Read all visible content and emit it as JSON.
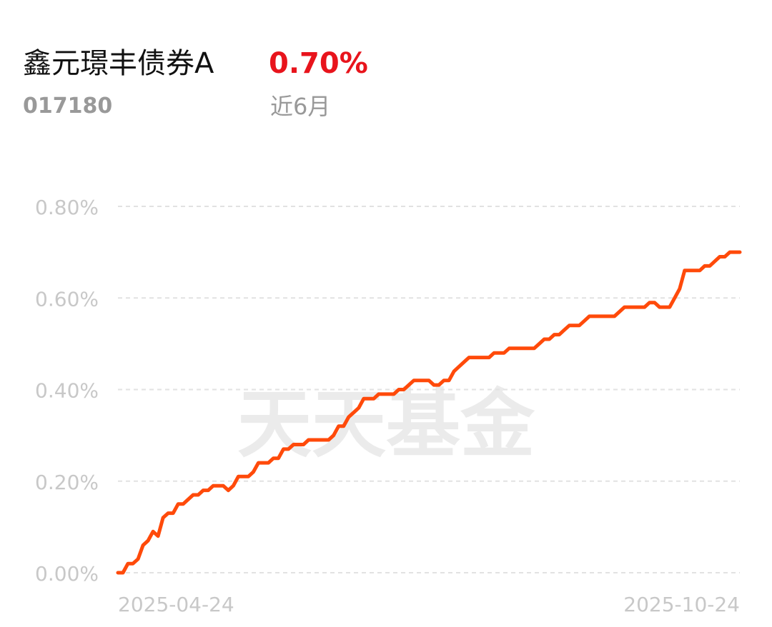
{
  "header": {
    "fund_name": "鑫元璟丰债券A",
    "return": "0.70%",
    "code": "017180",
    "period": "近6月"
  },
  "chart_data": {
    "type": "line",
    "watermark": "天天基金",
    "categories": [
      "2025-04-24",
      null,
      null,
      null,
      null,
      null,
      null,
      null,
      null,
      null,
      null,
      null,
      null,
      null,
      null,
      null,
      null,
      null,
      null,
      null,
      null,
      null,
      null,
      null,
      null,
      null,
      null,
      null,
      null,
      null,
      null,
      null,
      null,
      null,
      null,
      null,
      null,
      null,
      null,
      null,
      null,
      null,
      null,
      null,
      null,
      null,
      null,
      null,
      null,
      null,
      null,
      null,
      null,
      null,
      null,
      null,
      null,
      null,
      null,
      null,
      null,
      null,
      null,
      null,
      null,
      null,
      null,
      null,
      null,
      null,
      null,
      null,
      null,
      null,
      null,
      null,
      null,
      null,
      null,
      null,
      null,
      null,
      null,
      null,
      null,
      null,
      null,
      null,
      null,
      null,
      null,
      null,
      null,
      null,
      null,
      null,
      null,
      null,
      null,
      null,
      null,
      null,
      null,
      null,
      null,
      null,
      null,
      null,
      null,
      null,
      null,
      null,
      null,
      null,
      null,
      null,
      null,
      null,
      null,
      null,
      null,
      null,
      null,
      null,
      "2025-10-24"
    ],
    "series": [
      {
        "color": "#ff4a0a",
        "values": [
          0,
          0,
          0.02,
          0.02,
          0.03,
          0.06,
          0.07,
          0.09,
          0.08,
          0.12,
          0.13,
          0.13,
          0.15,
          0.15,
          0.16,
          0.17,
          0.17,
          0.18,
          0.18,
          0.19,
          0.19,
          0.19,
          0.18,
          0.19,
          0.21,
          0.21,
          0.21,
          0.22,
          0.24,
          0.24,
          0.24,
          0.25,
          0.25,
          0.27,
          0.27,
          0.28,
          0.28,
          0.28,
          0.29,
          0.29,
          0.29,
          0.29,
          0.29,
          0.3,
          0.32,
          0.32,
          0.34,
          0.35,
          0.36,
          0.38,
          0.38,
          0.38,
          0.39,
          0.39,
          0.39,
          0.39,
          0.4,
          0.4,
          0.41,
          0.42,
          0.42,
          0.42,
          0.42,
          0.41,
          0.41,
          0.42,
          0.42,
          0.44,
          0.45,
          0.46,
          0.47,
          0.47,
          0.47,
          0.47,
          0.47,
          0.48,
          0.48,
          0.48,
          0.49,
          0.49,
          0.49,
          0.49,
          0.49,
          0.49,
          0.5,
          0.51,
          0.51,
          0.52,
          0.52,
          0.53,
          0.54,
          0.54,
          0.54,
          0.55,
          0.56,
          0.56,
          0.56,
          0.56,
          0.56,
          0.56,
          0.57,
          0.58,
          0.58,
          0.58,
          0.58,
          0.58,
          0.59,
          0.59,
          0.58,
          0.58,
          0.58,
          0.6,
          0.62,
          0.66,
          0.66,
          0.66,
          0.66,
          0.67,
          0.67,
          0.68,
          0.69,
          0.69,
          0.7,
          0.7,
          0.7
        ]
      }
    ],
    "ylim": [
      0,
      0.8
    ],
    "yticks": [
      {
        "value": 0,
        "label": "0.00%"
      },
      {
        "value": 0.2,
        "label": "0.20%"
      },
      {
        "value": 0.4,
        "label": "0.40%"
      },
      {
        "value": 0.6,
        "label": "0.60%"
      },
      {
        "value": 0.8,
        "label": "0.80%"
      }
    ],
    "grid": true
  }
}
